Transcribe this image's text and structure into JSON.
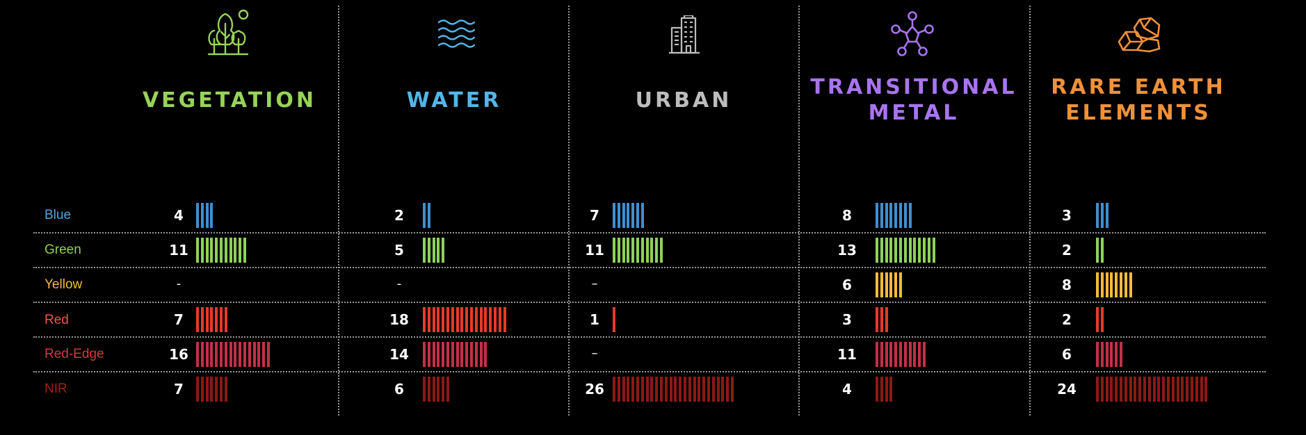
{
  "chart_data": {
    "type": "table",
    "bands": [
      {
        "name": "Blue",
        "color": "#3f8fd0",
        "label_color": "#4fa6dc"
      },
      {
        "name": "Green",
        "color": "#8fd15c",
        "label_color": "#8fd15c"
      },
      {
        "name": "Yellow",
        "color": "#f5bb3c",
        "label_color": "#f5bb3c"
      },
      {
        "name": "Red",
        "color": "#e83a2a",
        "label_color": "#ea5a3e"
      },
      {
        "name": "Red-Edge",
        "color": "#c23048",
        "label_color": "#d23a3a"
      },
      {
        "name": "NIR",
        "color": "#8b1a14",
        "label_color": "#a22018"
      }
    ],
    "categories": [
      {
        "name": "VEGETATION",
        "color": "#97d35a",
        "icon": "trees-icon",
        "values": [
          4,
          11,
          null,
          7,
          16,
          7
        ],
        "display": [
          "4",
          "11",
          "-",
          "7",
          "16",
          "7"
        ]
      },
      {
        "name": "WATER",
        "color": "#52b6e8",
        "icon": "waves-icon",
        "values": [
          2,
          5,
          null,
          18,
          14,
          6
        ],
        "display": [
          "2",
          "5",
          "-",
          "18",
          "14",
          "6"
        ]
      },
      {
        "name": "URBAN",
        "color": "#bdbdbd",
        "icon": "buildings-icon",
        "values": [
          7,
          11,
          null,
          1,
          null,
          26
        ],
        "display": [
          "7",
          "11",
          "–",
          "1",
          "–",
          "26"
        ]
      },
      {
        "name": "TRANSITIONAL\nMETAL",
        "color": "#a874f0",
        "icon": "molecule-icon",
        "values": [
          8,
          13,
          6,
          3,
          11,
          4
        ],
        "display": [
          "8",
          "13",
          "6",
          "3",
          "11",
          "4"
        ]
      },
      {
        "name": "RARE EARTH\nELEMENTS",
        "color": "#f0913a",
        "icon": "rocks-icon",
        "values": [
          3,
          2,
          8,
          2,
          6,
          24
        ],
        "display": [
          "3",
          "2",
          "8",
          "2",
          "6",
          "24"
        ]
      }
    ]
  }
}
